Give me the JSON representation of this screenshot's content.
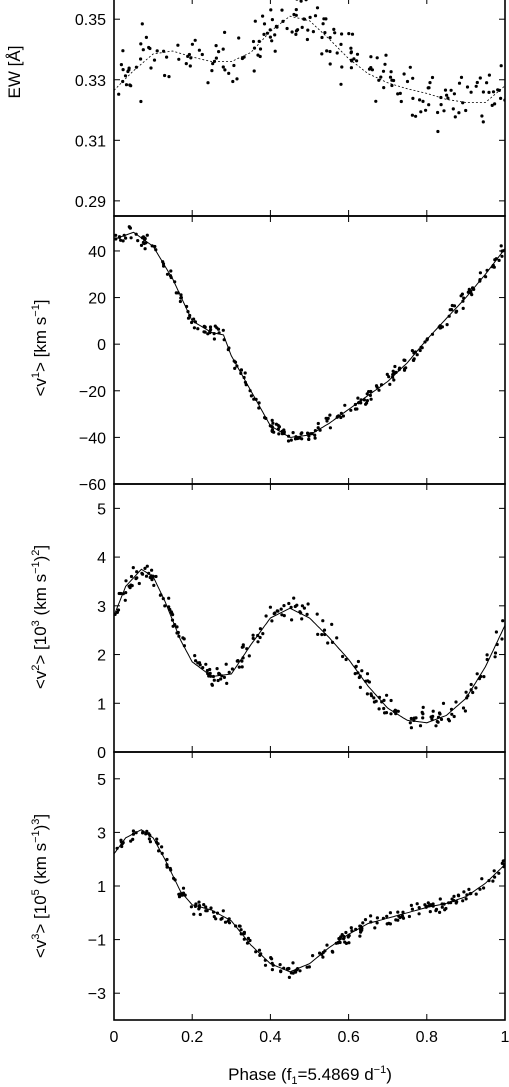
{
  "figure": {
    "xlabel_main": "Phase (f",
    "xlabel_sub": "1",
    "xlabel_mid": "=5.4869 d",
    "xlabel_sup": "−1",
    "xlabel_end": ")"
  },
  "chart_data": [
    {
      "type": "scatter",
      "panel": "ew",
      "ylabel": "EW [Å]",
      "ylim": [
        0.285,
        0.357
      ],
      "yticks": [
        0.29,
        0.31,
        0.33,
        0.35
      ],
      "ytick_labels": [
        "0.29",
        "0.31",
        "0.33",
        "0.35"
      ],
      "xlim": [
        0,
        1
      ],
      "xticks": [
        0,
        0.2,
        0.4,
        0.6,
        0.8,
        1
      ],
      "fit_style": "dotted",
      "fit": {
        "x": [
          0,
          0.05,
          0.1,
          0.15,
          0.2,
          0.25,
          0.3,
          0.35,
          0.4,
          0.45,
          0.5,
          0.55,
          0.6,
          0.65,
          0.7,
          0.75,
          0.8,
          0.85,
          0.9,
          0.95,
          1
        ],
        "y": [
          0.3265,
          0.333,
          0.3385,
          0.3395,
          0.3375,
          0.336,
          0.336,
          0.339,
          0.346,
          0.351,
          0.3495,
          0.3435,
          0.337,
          0.332,
          0.329,
          0.327,
          0.3255,
          0.3235,
          0.3225,
          0.3225,
          0.328
        ]
      },
      "observations": {
        "n": 200,
        "scatter": 0.0065,
        "seed": 11
      }
    },
    {
      "type": "scatter",
      "panel": "v1",
      "ylabel_main": "<v",
      "ylabel_sup": "1",
      "ylabel_end": "> [km s",
      "ylabel_sup2": "−1",
      "ylabel_close": "]",
      "ylim": [
        -60,
        55
      ],
      "yticks": [
        -60,
        -40,
        -20,
        0,
        20,
        40
      ],
      "ytick_labels": [
        "−60",
        "−40",
        "−20",
        "0",
        "20",
        "40"
      ],
      "xlim": [
        0,
        1
      ],
      "fit_style": "solid",
      "fit": {
        "x": [
          0,
          0.05,
          0.1,
          0.15,
          0.2,
          0.25,
          0.28,
          0.3,
          0.35,
          0.4,
          0.45,
          0.5,
          0.55,
          0.6,
          0.65,
          0.7,
          0.75,
          0.8,
          0.85,
          0.9,
          0.95,
          1
        ],
        "y": [
          45,
          48,
          42,
          28,
          10,
          5,
          4,
          -5,
          -20,
          -35,
          -40,
          -39,
          -34,
          -28,
          -22,
          -16,
          -8,
          2,
          11,
          20,
          30,
          41
        ]
      },
      "observations": {
        "n": 240,
        "scatter": 2.2,
        "seed": 23
      }
    },
    {
      "type": "scatter",
      "panel": "v2",
      "ylabel_main": "<v",
      "ylabel_sup": "2",
      "ylabel_end": "> [10",
      "ylabel_sup2": "3",
      "ylabel_mid2": " (km s",
      "ylabel_sup3": "−1",
      "ylabel_mid3": ")",
      "ylabel_sup4": "2",
      "ylabel_close": "]",
      "ylim": [
        0,
        5.5
      ],
      "yticks": [
        0,
        1,
        2,
        3,
        4,
        5
      ],
      "ytick_labels": [
        "0",
        "1",
        "2",
        "3",
        "4",
        "5"
      ],
      "xlim": [
        0,
        1
      ],
      "fit_style": "solid",
      "fit": {
        "x": [
          0,
          0.03,
          0.07,
          0.1,
          0.13,
          0.17,
          0.2,
          0.25,
          0.3,
          0.35,
          0.4,
          0.45,
          0.5,
          0.55,
          0.6,
          0.65,
          0.7,
          0.75,
          0.8,
          0.85,
          0.9,
          0.95,
          1
        ],
        "y": [
          2.8,
          3.4,
          3.75,
          3.6,
          3.1,
          2.3,
          1.85,
          1.55,
          1.6,
          2.2,
          2.75,
          2.95,
          2.75,
          2.35,
          1.9,
          1.35,
          0.9,
          0.65,
          0.6,
          0.75,
          1.1,
          1.75,
          2.6
        ]
      },
      "observations": {
        "n": 220,
        "scatter": 0.17,
        "seed": 37
      }
    },
    {
      "type": "scatter",
      "panel": "v3",
      "ylabel_main": "<v",
      "ylabel_sup": "3",
      "ylabel_end": "> [10",
      "ylabel_sup2": "5",
      "ylabel_mid2": " (km s",
      "ylabel_sup3": "−1",
      "ylabel_mid3": ")",
      "ylabel_sup4": "3",
      "ylabel_close": "]",
      "ylim": [
        -4,
        6
      ],
      "yticks": [
        -3,
        -1,
        1,
        3,
        5
      ],
      "ytick_labels": [
        "−3",
        "−1",
        "1",
        "3",
        "5"
      ],
      "xlim": [
        0,
        1
      ],
      "xtick_labels": [
        "0",
        "0.2",
        "0.4",
        "0.6",
        "0.8",
        "1"
      ],
      "fit_style": "solid",
      "fit": {
        "x": [
          0,
          0.03,
          0.07,
          0.1,
          0.13,
          0.17,
          0.2,
          0.25,
          0.3,
          0.35,
          0.4,
          0.45,
          0.5,
          0.55,
          0.6,
          0.65,
          0.7,
          0.75,
          0.8,
          0.85,
          0.9,
          0.95,
          1
        ],
        "y": [
          2.2,
          2.8,
          3.1,
          2.8,
          2.0,
          0.8,
          0.3,
          0.1,
          -0.3,
          -1.2,
          -1.9,
          -2.2,
          -1.9,
          -1.3,
          -0.8,
          -0.4,
          -0.2,
          0.0,
          0.2,
          0.35,
          0.6,
          1.1,
          1.8
        ]
      },
      "observations": {
        "n": 220,
        "scatter": 0.2,
        "seed": 53
      }
    }
  ]
}
